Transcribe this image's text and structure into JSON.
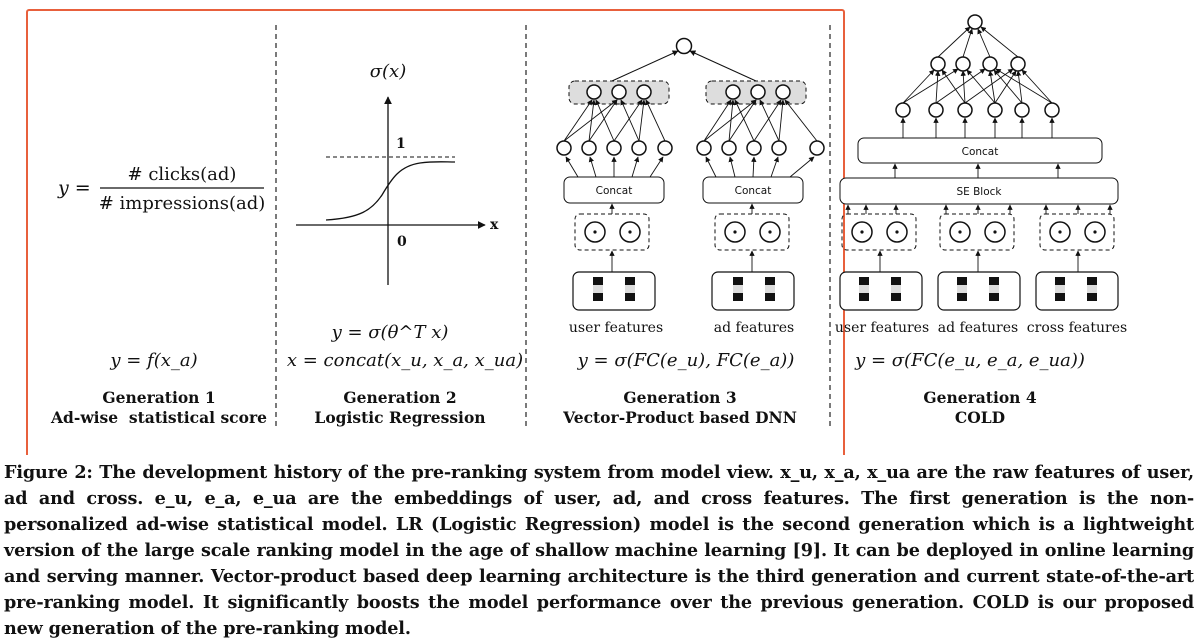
{
  "figure": {
    "gen1": {
      "formula_lhs": "y =",
      "numerator": "# clicks(ad)",
      "denominator": "# impressions(ad)",
      "equation": "y = f(x_a)",
      "title": "Generation 1",
      "subtitle": "Ad-wise  statistical score"
    },
    "gen2": {
      "axis_title": "σ(x)",
      "label_one": "1",
      "label_zero": "0",
      "label_x": "x",
      "equation_1": "y = σ(θ^T x)",
      "equation_2": "x = concat(x_u, x_a, x_ua)",
      "title": "Generation 2",
      "subtitle": "Logistic Regression"
    },
    "gen3": {
      "concat_left": "Concat",
      "concat_right": "Concat",
      "label_user": "user features",
      "label_ad": "ad features",
      "equation": "y = σ(FC(e_u), FC(e_a))",
      "title": "Generation 3",
      "subtitle": "Vector-Product based DNN"
    },
    "gen4": {
      "concat": "Concat",
      "se_block": "SE Block",
      "label_user": "user features",
      "label_ad": "ad features",
      "label_cross": "cross features",
      "equation": "y = σ(FC(e_u, e_a, e_ua))",
      "title": "Generation 4",
      "subtitle": "COLD"
    }
  },
  "caption": {
    "label": "Figure 2:",
    "text": "The development history of the pre-ranking system from model view. x_u, x_a, x_ua are the raw features of user, ad and cross. e_u, e_a, e_ua are the embeddings of user, ad, and cross features. The first generation is the non-personalized ad-wise statistical model. LR (Logistic Regression) model is the second generation which is a lightweight version of the large scale ranking model in the age of shallow machine learning [9]. It can be deployed in online learning and serving manner. Vector-product based deep learning architecture is the third generation and current state-of-the-art pre-ranking model. It significantly boosts the model performance over the previous generation. COLD is our proposed new generation of the pre-ranking model."
  },
  "colors": {
    "highlight_box": "#e8603c",
    "ink": "#111111",
    "shade": "#dddddd"
  }
}
